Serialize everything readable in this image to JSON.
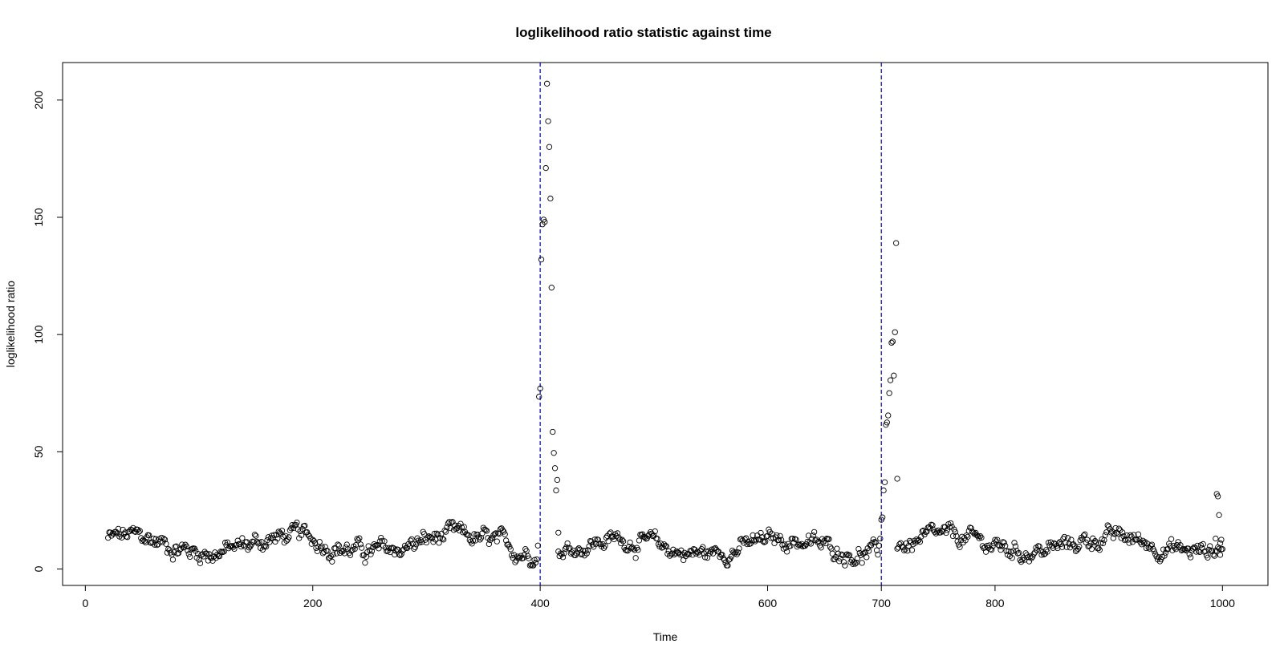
{
  "chart_data": {
    "type": "scatter",
    "title": "loglikelihood ratio statistic against time",
    "xlabel": "Time",
    "ylabel": "loglikelihood ratio",
    "xlim": [
      -20,
      1040
    ],
    "ylim": [
      -7,
      216
    ],
    "xticks": [
      0,
      200,
      400,
      600,
      700,
      800,
      1000
    ],
    "yticks": [
      0,
      50,
      100,
      150,
      200
    ],
    "grid": false,
    "legend": "none",
    "marker": "open-circle",
    "vlines": [
      {
        "x": 400,
        "color": "#0000CD",
        "style": "dashed"
      },
      {
        "x": 700,
        "color": "#0000CD",
        "style": "dashed"
      }
    ],
    "segments": [
      {
        "from": 20,
        "to": 397,
        "base": 10.5,
        "amp": 5.5
      },
      {
        "from": 416,
        "to": 697,
        "base": 9.5,
        "amp": 5
      },
      {
        "from": 714,
        "to": 1000,
        "base": 10.5,
        "amp": 5
      }
    ],
    "peaks": [
      {
        "x": 398,
        "y": 10
      },
      {
        "x": 399,
        "y": 73.5
      },
      {
        "x": 400,
        "y": 77
      },
      {
        "x": 401,
        "y": 132
      },
      {
        "x": 402,
        "y": 147
      },
      {
        "x": 403,
        "y": 149
      },
      {
        "x": 404,
        "y": 148
      },
      {
        "x": 405,
        "y": 171
      },
      {
        "x": 406,
        "y": 207
      },
      {
        "x": 407,
        "y": 191
      },
      {
        "x": 408,
        "y": 180
      },
      {
        "x": 409,
        "y": 158
      },
      {
        "x": 410,
        "y": 120
      },
      {
        "x": 411,
        "y": 58.5
      },
      {
        "x": 412,
        "y": 49.5
      },
      {
        "x": 413,
        "y": 43
      },
      {
        "x": 414,
        "y": 33.5
      },
      {
        "x": 415,
        "y": 38
      },
      {
        "x": 416,
        "y": 15.5
      },
      {
        "x": 698,
        "y": 10
      },
      {
        "x": 699,
        "y": 13
      },
      {
        "x": 700,
        "y": 21
      },
      {
        "x": 701,
        "y": 22
      },
      {
        "x": 702,
        "y": 33.5
      },
      {
        "x": 703,
        "y": 37
      },
      {
        "x": 704,
        "y": 61.5
      },
      {
        "x": 705,
        "y": 62.5
      },
      {
        "x": 706,
        "y": 65.5
      },
      {
        "x": 707,
        "y": 75
      },
      {
        "x": 708,
        "y": 80.5
      },
      {
        "x": 709,
        "y": 96.5
      },
      {
        "x": 710,
        "y": 97
      },
      {
        "x": 711,
        "y": 82.5
      },
      {
        "x": 712,
        "y": 101
      },
      {
        "x": 713,
        "y": 139
      },
      {
        "x": 714,
        "y": 38.5
      },
      {
        "x": 994,
        "y": 13
      },
      {
        "x": 995,
        "y": 32
      },
      {
        "x": 996,
        "y": 31
      },
      {
        "x": 997,
        "y": 23
      },
      {
        "x": 998,
        "y": 11
      },
      {
        "x": 999,
        "y": 12.5
      }
    ]
  }
}
